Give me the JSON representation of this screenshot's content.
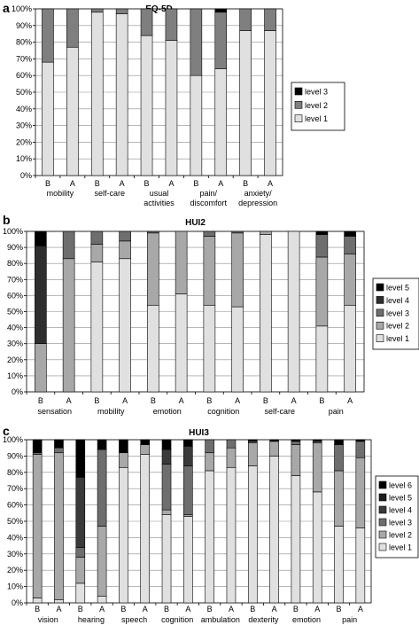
{
  "chart_data": [
    {
      "panel": "a",
      "type": "bar",
      "stacked": true,
      "title": "EQ-5D",
      "ylim": [
        0,
        100
      ],
      "yticks": [
        "0%",
        "10%",
        "20%",
        "30%",
        "40%",
        "50%",
        "60%",
        "70%",
        "80%",
        "90%",
        "100%"
      ],
      "bar_labels": [
        "B",
        "A",
        "B",
        "A",
        "B",
        "A",
        "B",
        "A",
        "B",
        "A"
      ],
      "groups": [
        "mobility",
        "self-care",
        "usual|activities",
        "pain/|discomfort",
        "anxiety/|depression"
      ],
      "legend": [
        "level 3",
        "level 2",
        "level 1"
      ],
      "legend_position": "right",
      "colors": {
        "level 1": "#e0e0e0",
        "level 2": "#7f7f7f",
        "level 3": "#000000"
      },
      "series": [
        {
          "name": "level 1",
          "values": [
            68,
            77,
            98,
            97,
            84,
            81,
            60,
            64,
            87,
            87
          ]
        },
        {
          "name": "level 2",
          "values": [
            32,
            23,
            2,
            3,
            16,
            19,
            40,
            34,
            13,
            13
          ]
        },
        {
          "name": "level 3",
          "values": [
            0,
            0,
            0,
            0,
            0,
            0,
            0,
            2,
            0,
            0
          ]
        }
      ]
    },
    {
      "panel": "b",
      "type": "bar",
      "stacked": true,
      "title": "HUI2",
      "ylim": [
        0,
        100
      ],
      "yticks": [
        "0%",
        "10%",
        "20%",
        "30%",
        "40%",
        "50%",
        "60%",
        "70%",
        "80%",
        "90%",
        "100%"
      ],
      "bar_labels": [
        "B",
        "A",
        "B",
        "A",
        "B",
        "A",
        "B",
        "A",
        "B",
        "A",
        "B",
        "A"
      ],
      "groups": [
        "sensation",
        "mobility",
        "emotion",
        "cognition",
        "self-care",
        "pain"
      ],
      "legend": [
        "level 5",
        "level 4",
        "level 3",
        "level 2",
        "level 1"
      ],
      "legend_position": "right",
      "colors": {
        "level 1": "#e0e0e0",
        "level 2": "#a8a8a8",
        "level 3": "#6e6e6e",
        "level 4": "#2e2e2e",
        "level 5": "#000000"
      },
      "series": [
        {
          "name": "level 1",
          "values": [
            0,
            0,
            81,
            83,
            54,
            61,
            54,
            53,
            98,
            100,
            41,
            54
          ]
        },
        {
          "name": "level 2",
          "values": [
            30,
            83,
            11,
            11,
            45,
            39,
            43,
            46,
            2,
            0,
            43,
            32
          ]
        },
        {
          "name": "level 3",
          "values": [
            0,
            17,
            8,
            6,
            1,
            0,
            3,
            1,
            0,
            0,
            14,
            11
          ]
        },
        {
          "name": "level 4",
          "values": [
            61,
            0,
            0,
            0,
            0,
            0,
            0,
            0,
            0,
            0,
            0,
            0
          ]
        },
        {
          "name": "level 5",
          "values": [
            9,
            0,
            0,
            0,
            0,
            0,
            0,
            0,
            0,
            0,
            2,
            3
          ]
        }
      ]
    },
    {
      "panel": "c",
      "type": "bar",
      "stacked": true,
      "title": "HUI3",
      "ylim": [
        0,
        100
      ],
      "yticks": [
        "0%",
        "10%",
        "20%",
        "30%",
        "40%",
        "50%",
        "60%",
        "70%",
        "80%",
        "90%",
        "100%"
      ],
      "bar_labels": [
        "B",
        "A",
        "B",
        "A",
        "B",
        "A",
        "B",
        "A",
        "B",
        "A",
        "B",
        "A",
        "B",
        "A",
        "B",
        "A"
      ],
      "groups": [
        "vision",
        "hearing",
        "speech",
        "cognition",
        "ambulation",
        "dexterity",
        "emotion",
        "pain"
      ],
      "legend": [
        "level 6",
        "level 5",
        "level 4",
        "level 3",
        "level 2",
        "level 1"
      ],
      "legend_position": "right",
      "colors": {
        "level 1": "#e0e0e0",
        "level 2": "#a8a8a8",
        "level 3": "#6e6e6e",
        "level 4": "#3a3a3a",
        "level 5": "#1c1c1c",
        "level 6": "#000000"
      },
      "series": [
        {
          "name": "level 1",
          "values": [
            3,
            2,
            12,
            4,
            83,
            91,
            54,
            53,
            81,
            83,
            84,
            90,
            78,
            68,
            47,
            46
          ]
        },
        {
          "name": "level 2",
          "values": [
            88,
            90,
            16,
            43,
            9,
            6,
            3,
            1,
            11,
            12,
            14,
            9,
            19,
            30,
            34,
            43
          ]
        },
        {
          "name": "level 3",
          "values": [
            1,
            3,
            6,
            47,
            0,
            0,
            28,
            30,
            8,
            5,
            1,
            0,
            2,
            1,
            16,
            10
          ]
        },
        {
          "name": "level 4",
          "values": [
            0,
            0,
            43,
            0,
            0,
            0,
            9,
            12,
            0,
            0,
            0,
            0,
            0,
            0,
            0,
            0
          ]
        },
        {
          "name": "level 5",
          "values": [
            0,
            0,
            0,
            0,
            0,
            0,
            0,
            0,
            0,
            0,
            0,
            0,
            0,
            0,
            0,
            0
          ]
        },
        {
          "name": "level 6",
          "values": [
            8,
            5,
            23,
            6,
            8,
            3,
            6,
            4,
            0,
            0,
            1,
            1,
            1,
            1,
            3,
            1
          ]
        }
      ]
    }
  ]
}
